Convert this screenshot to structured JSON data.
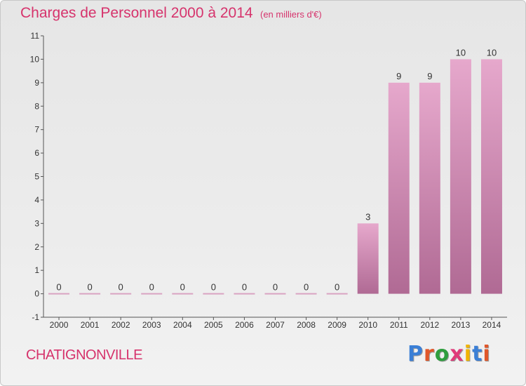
{
  "header": {
    "title": "Charges de Personnel 2000 à 2014",
    "subtitle": "(en milliers d'€)"
  },
  "footer": {
    "commune": "CHATIGNONVILLE",
    "logo_letters": [
      "P",
      "r",
      "o",
      "x",
      "i",
      "t",
      "i"
    ],
    "logo_colors": [
      "#3b7fd6",
      "#e0572a",
      "#2e9e3e",
      "#e03a7a",
      "#f0b400",
      "#3b7fd6",
      "#e0572a"
    ]
  },
  "colors": {
    "accent": "#d6336c",
    "bar_top": "#e6a8cc",
    "bar_bottom": "#b06a94",
    "zero_line": "#d9a3c2"
  },
  "chart_data": {
    "type": "bar",
    "title": "Charges de Personnel 2000 à 2014",
    "subtitle": "(en milliers d'€)",
    "categories": [
      "2000",
      "2001",
      "2002",
      "2003",
      "2004",
      "2005",
      "2006",
      "2007",
      "2008",
      "2009",
      "2010",
      "2011",
      "2012",
      "2013",
      "2014"
    ],
    "values": [
      0,
      0,
      0,
      0,
      0,
      0,
      0,
      0,
      0,
      0,
      3,
      9,
      9,
      10,
      10
    ],
    "value_labels": [
      "0",
      "0",
      "0",
      "0",
      "0",
      "0",
      "0",
      "0",
      "0",
      "0",
      "3",
      "9",
      "9",
      "10",
      "10"
    ],
    "ylim": [
      -1,
      11
    ],
    "yticks": [
      "-1",
      "0",
      "1",
      "2",
      "3",
      "4",
      "5",
      "6",
      "7",
      "8",
      "9",
      "10",
      "11"
    ],
    "grid": false,
    "legend": "none"
  }
}
